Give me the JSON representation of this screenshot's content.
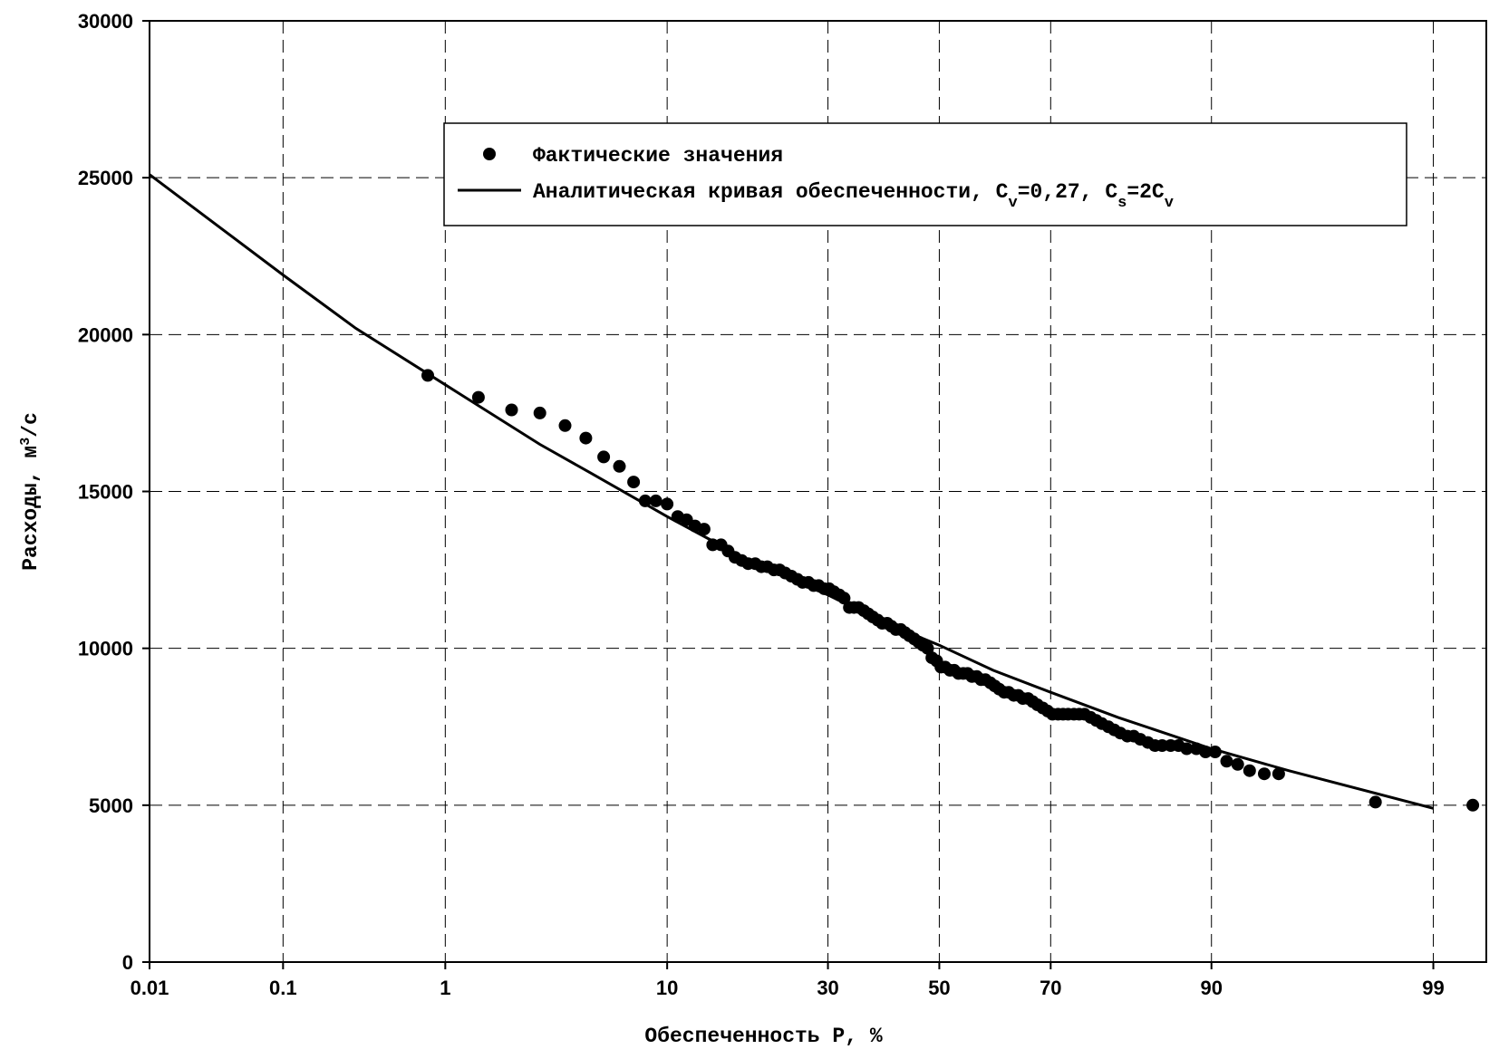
{
  "chart_data": {
    "type": "scatter",
    "title": "",
    "xlabel": "Обеспеченность P, %",
    "ylabel": "Расходы, м3/с",
    "ylabel_parts": {
      "base": "Расходы, м",
      "sup": "3",
      "tail": "/с"
    },
    "x_scale": "probability",
    "x_ticks": [
      0.01,
      0.1,
      1,
      10,
      30,
      50,
      70,
      90,
      99
    ],
    "x_tick_labels": [
      "0.01",
      "0.1",
      "1",
      "10",
      "30",
      "50",
      "70",
      "90",
      "99"
    ],
    "y_ticks": [
      0,
      5000,
      10000,
      15000,
      20000,
      25000,
      30000
    ],
    "y_tick_labels": [
      "0",
      "5000",
      "10000",
      "15000",
      "20000",
      "25000",
      "30000"
    ],
    "xlim": [
      0.01,
      99.5
    ],
    "ylim": [
      0,
      30000
    ],
    "grid": true,
    "legend_position": "top-center",
    "legend": [
      {
        "label": "Фактические значения",
        "marker": "dot"
      },
      {
        "label": "Аналитическая кривая обеспеченности, Cv=0,27, Cs=2Cv",
        "marker": "line",
        "label_parts": {
          "a": "Аналитическая кривая обеспеченности, C",
          "sub1": "v",
          "b": "=0,27, C",
          "sub2": "s",
          "c": "=2C",
          "sub3": "v"
        }
      }
    ],
    "series": [
      {
        "name": "Фактические значения",
        "kind": "scatter",
        "points": [
          [
            0.8,
            18700
          ],
          [
            1.5,
            18000
          ],
          [
            2.2,
            17600
          ],
          [
            3.0,
            17500
          ],
          [
            3.9,
            17100
          ],
          [
            4.8,
            16700
          ],
          [
            5.7,
            16100
          ],
          [
            6.6,
            15800
          ],
          [
            7.5,
            15300
          ],
          [
            8.3,
            14700
          ],
          [
            9.1,
            14700
          ],
          [
            10.0,
            14600
          ],
          [
            10.9,
            14200
          ],
          [
            11.7,
            14100
          ],
          [
            12.5,
            13900
          ],
          [
            13.4,
            13800
          ],
          [
            14.3,
            13300
          ],
          [
            15.2,
            13300
          ],
          [
            16.0,
            13100
          ],
          [
            16.8,
            12900
          ],
          [
            17.6,
            12800
          ],
          [
            18.4,
            12700
          ],
          [
            19.3,
            12700
          ],
          [
            20.1,
            12600
          ],
          [
            20.9,
            12600
          ],
          [
            21.8,
            12500
          ],
          [
            22.6,
            12500
          ],
          [
            23.4,
            12400
          ],
          [
            24.3,
            12300
          ],
          [
            25.2,
            12200
          ],
          [
            26.0,
            12100
          ],
          [
            26.9,
            12100
          ],
          [
            27.7,
            12000
          ],
          [
            28.5,
            12000
          ],
          [
            29.4,
            11900
          ],
          [
            30.2,
            11900
          ],
          [
            31.0,
            11800
          ],
          [
            31.9,
            11700
          ],
          [
            32.7,
            11600
          ],
          [
            33.6,
            11300
          ],
          [
            34.4,
            11300
          ],
          [
            35.2,
            11300
          ],
          [
            36.1,
            11200
          ],
          [
            36.9,
            11100
          ],
          [
            37.7,
            11000
          ],
          [
            38.6,
            10900
          ],
          [
            39.4,
            10800
          ],
          [
            40.3,
            10800
          ],
          [
            41.1,
            10700
          ],
          [
            41.9,
            10600
          ],
          [
            42.8,
            10600
          ],
          [
            43.6,
            10500
          ],
          [
            44.4,
            10400
          ],
          [
            45.3,
            10300
          ],
          [
            46.1,
            10200
          ],
          [
            46.9,
            10100
          ],
          [
            47.8,
            10000
          ],
          [
            48.6,
            9700
          ],
          [
            49.5,
            9600
          ],
          [
            50.3,
            9400
          ],
          [
            51.1,
            9400
          ],
          [
            52.0,
            9300
          ],
          [
            52.8,
            9300
          ],
          [
            53.6,
            9200
          ],
          [
            54.5,
            9200
          ],
          [
            55.3,
            9200
          ],
          [
            56.1,
            9100
          ],
          [
            57.0,
            9100
          ],
          [
            57.8,
            9000
          ],
          [
            58.6,
            9000
          ],
          [
            59.5,
            8900
          ],
          [
            60.3,
            8800
          ],
          [
            61.1,
            8700
          ],
          [
            62.0,
            8600
          ],
          [
            62.8,
            8600
          ],
          [
            63.7,
            8500
          ],
          [
            64.5,
            8500
          ],
          [
            65.3,
            8400
          ],
          [
            66.2,
            8400
          ],
          [
            67.0,
            8300
          ],
          [
            67.8,
            8200
          ],
          [
            68.7,
            8100
          ],
          [
            69.5,
            8000
          ],
          [
            70.3,
            7900
          ],
          [
            71.2,
            7900
          ],
          [
            72.0,
            7900
          ],
          [
            72.8,
            7900
          ],
          [
            73.7,
            7900
          ],
          [
            74.5,
            7900
          ],
          [
            75.3,
            7900
          ],
          [
            76.2,
            7800
          ],
          [
            77.0,
            7700
          ],
          [
            77.8,
            7600
          ],
          [
            78.7,
            7500
          ],
          [
            79.5,
            7400
          ],
          [
            80.3,
            7300
          ],
          [
            81.2,
            7200
          ],
          [
            82.0,
            7200
          ],
          [
            82.8,
            7100
          ],
          [
            83.7,
            7000
          ],
          [
            84.5,
            6900
          ],
          [
            85.3,
            6900
          ],
          [
            86.2,
            6900
          ],
          [
            87.0,
            6900
          ],
          [
            87.8,
            6800
          ],
          [
            88.7,
            6800
          ],
          [
            89.5,
            6700
          ],
          [
            90.3,
            6700
          ],
          [
            91.2,
            6400
          ],
          [
            92.0,
            6300
          ],
          [
            92.8,
            6100
          ],
          [
            93.7,
            6000
          ],
          [
            94.5,
            6000
          ],
          [
            98.0,
            5100
          ],
          [
            99.4,
            5000
          ]
        ]
      },
      {
        "name": "Аналитическая кривая обеспеченности, Cv=0,27, Cs=2Cv",
        "kind": "line",
        "points": [
          [
            0.01,
            25100
          ],
          [
            0.1,
            21900
          ],
          [
            0.3,
            20200
          ],
          [
            1,
            18400
          ],
          [
            3,
            16500
          ],
          [
            5,
            15600
          ],
          [
            10,
            14200
          ],
          [
            20,
            12600
          ],
          [
            30,
            11700
          ],
          [
            40,
            10800
          ],
          [
            50,
            10100
          ],
          [
            60,
            9300
          ],
          [
            70,
            8600
          ],
          [
            80,
            7800
          ],
          [
            90,
            6800
          ],
          [
            95,
            6100
          ],
          [
            99,
            4900
          ]
        ]
      }
    ]
  }
}
